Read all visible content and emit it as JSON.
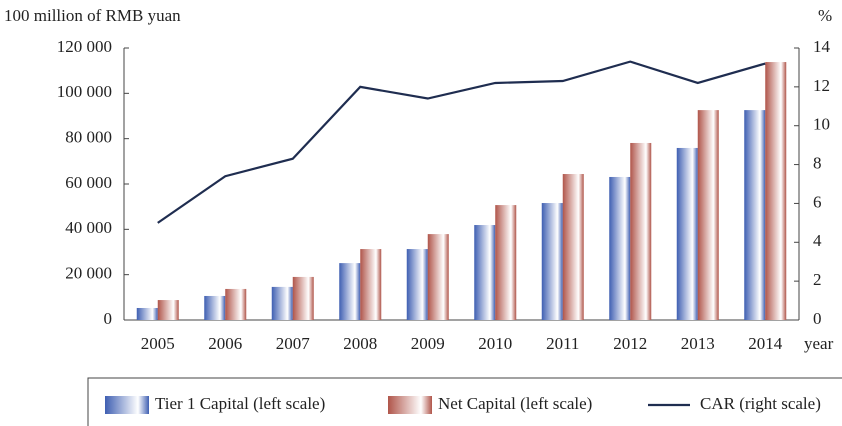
{
  "chart_data": {
    "type": "bar",
    "y_label": "100 million of RMB yuan",
    "y2_label": "%",
    "x_label": "year",
    "categories": [
      "2005",
      "2006",
      "2007",
      "2008",
      "2009",
      "2010",
      "2011",
      "2012",
      "2013",
      "2014"
    ],
    "series": [
      {
        "name": "Tier 1 Capital (left scale)",
        "color": "#3f5fb2",
        "type": "bar",
        "values": [
          5300,
          10600,
          14600,
          25100,
          31300,
          41900,
          51600,
          63100,
          75900,
          92600
        ]
      },
      {
        "name": "Net Capital (left scale)",
        "color": "#b0554a",
        "type": "bar",
        "values": [
          8800,
          13700,
          19000,
          31300,
          37900,
          50700,
          64400,
          78100,
          92600,
          113800
        ]
      },
      {
        "name": "CAR (right scale)",
        "color": "#1f2d50",
        "type": "line",
        "axis": "y2",
        "values": [
          5.0,
          7.4,
          8.3,
          12.0,
          11.4,
          12.2,
          12.3,
          13.3,
          12.2,
          13.2
        ]
      }
    ],
    "ylim": [
      0,
      120000
    ],
    "yticks": [
      0,
      {
        "value": 20000,
        "label": "20 000"
      },
      {
        "value": 40000,
        "label": "40 000"
      },
      {
        "value": 60000,
        "label": "60 000"
      },
      {
        "value": 80000,
        "label": "80 000"
      },
      {
        "value": 100000,
        "label": "100 000"
      },
      {
        "value": 120000,
        "label": "120 000"
      }
    ],
    "y2lim": [
      0,
      14
    ],
    "y2ticks": [
      0,
      2,
      4,
      6,
      8,
      10,
      12,
      14
    ]
  }
}
